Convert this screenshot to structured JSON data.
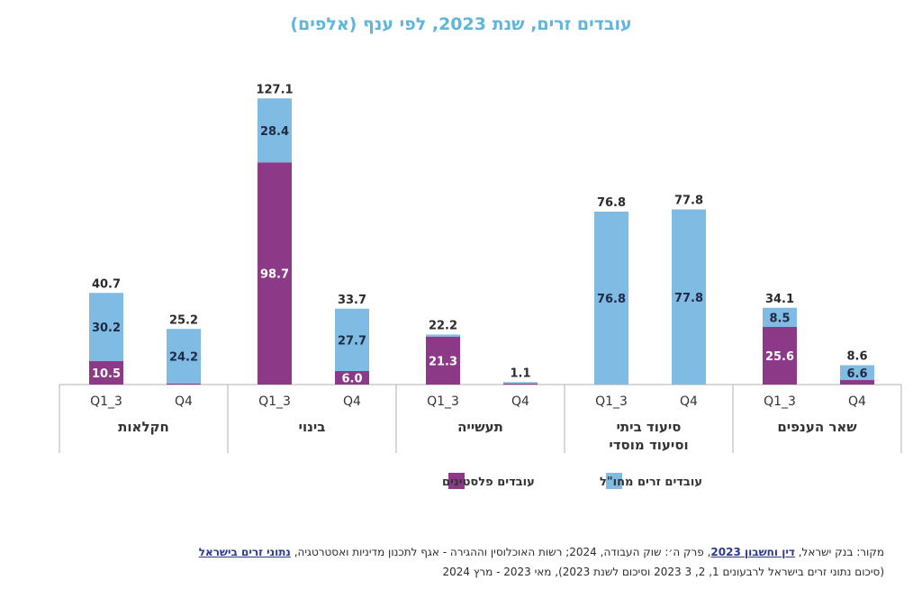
{
  "chart_data": {
    "type": "bar",
    "stacked": true,
    "title": "עובדים זרים, שנת 2023, לפי ענף (אלפים)",
    "groups": [
      "חקלאות",
      "בינוי",
      "תעשייה",
      "סיעוד ביתי וסיעוד מוסדי",
      "שאר הענפים"
    ],
    "group_lines": [
      [
        "חקלאות"
      ],
      [
        "בינוי"
      ],
      [
        "תעשייה"
      ],
      [
        "סיעוד ביתי",
        "וסיעוד מוסדי"
      ],
      [
        "שאר הענפים"
      ]
    ],
    "periods": [
      "Q1_3",
      "Q4"
    ],
    "colors": {
      "foreign": "#7fbbe3",
      "palestinian": "#8c3a87"
    },
    "series": [
      {
        "name": "עובדים פלסטינים",
        "key": "palestinian",
        "values": [
          [
            10.5,
            0.5
          ],
          [
            98.7,
            6.0
          ],
          [
            21.3,
            0.4
          ],
          [
            0,
            0
          ],
          [
            25.6,
            2.0
          ]
        ]
      },
      {
        "name": "עובדים זרים מחו\"ל",
        "key": "foreign",
        "values": [
          [
            30.2,
            24.2
          ],
          [
            28.4,
            27.7
          ],
          [
            0.9,
            0.7
          ],
          [
            76.8,
            77.8
          ],
          [
            8.5,
            6.6
          ]
        ]
      }
    ],
    "totals": [
      [
        40.7,
        25.2
      ],
      [
        127.1,
        33.7
      ],
      [
        22.2,
        1.1
      ],
      [
        76.8,
        77.8
      ],
      [
        34.1,
        8.6
      ]
    ],
    "inner_labels": {
      "palestinian": [
        [
          "10.5",
          ""
        ],
        [
          "98.7",
          "6.0"
        ],
        [
          "21.3",
          ""
        ],
        [
          "",
          ""
        ],
        [
          "25.6",
          ""
        ]
      ],
      "foreign": [
        [
          "30.2",
          "24.2"
        ],
        [
          "28.4",
          "27.7"
        ],
        [
          "",
          ""
        ],
        [
          "76.8",
          "77.8"
        ],
        [
          "8.5",
          "6.6"
        ]
      ]
    },
    "ylim": [
      0,
      130
    ],
    "xlabel": "",
    "ylabel": ""
  },
  "source": {
    "prefix": "מקור: בנק ישראל, ",
    "link1": "דין וחשבון 2023",
    "middle": ", פרק ה׳: שוק העבודה, 2024; רשות האוכלוסין וההגירה - אגף לתכנון מדיניות ואסטרטגיה, ",
    "link2": "נתוני זרים בישראל",
    "line2": "(סיכום נתוני זרים בישראל לרבעונים 1, 2, 3 2023 וסיכום לשנת 2023), מאי 2023 - מרץ 2024"
  }
}
